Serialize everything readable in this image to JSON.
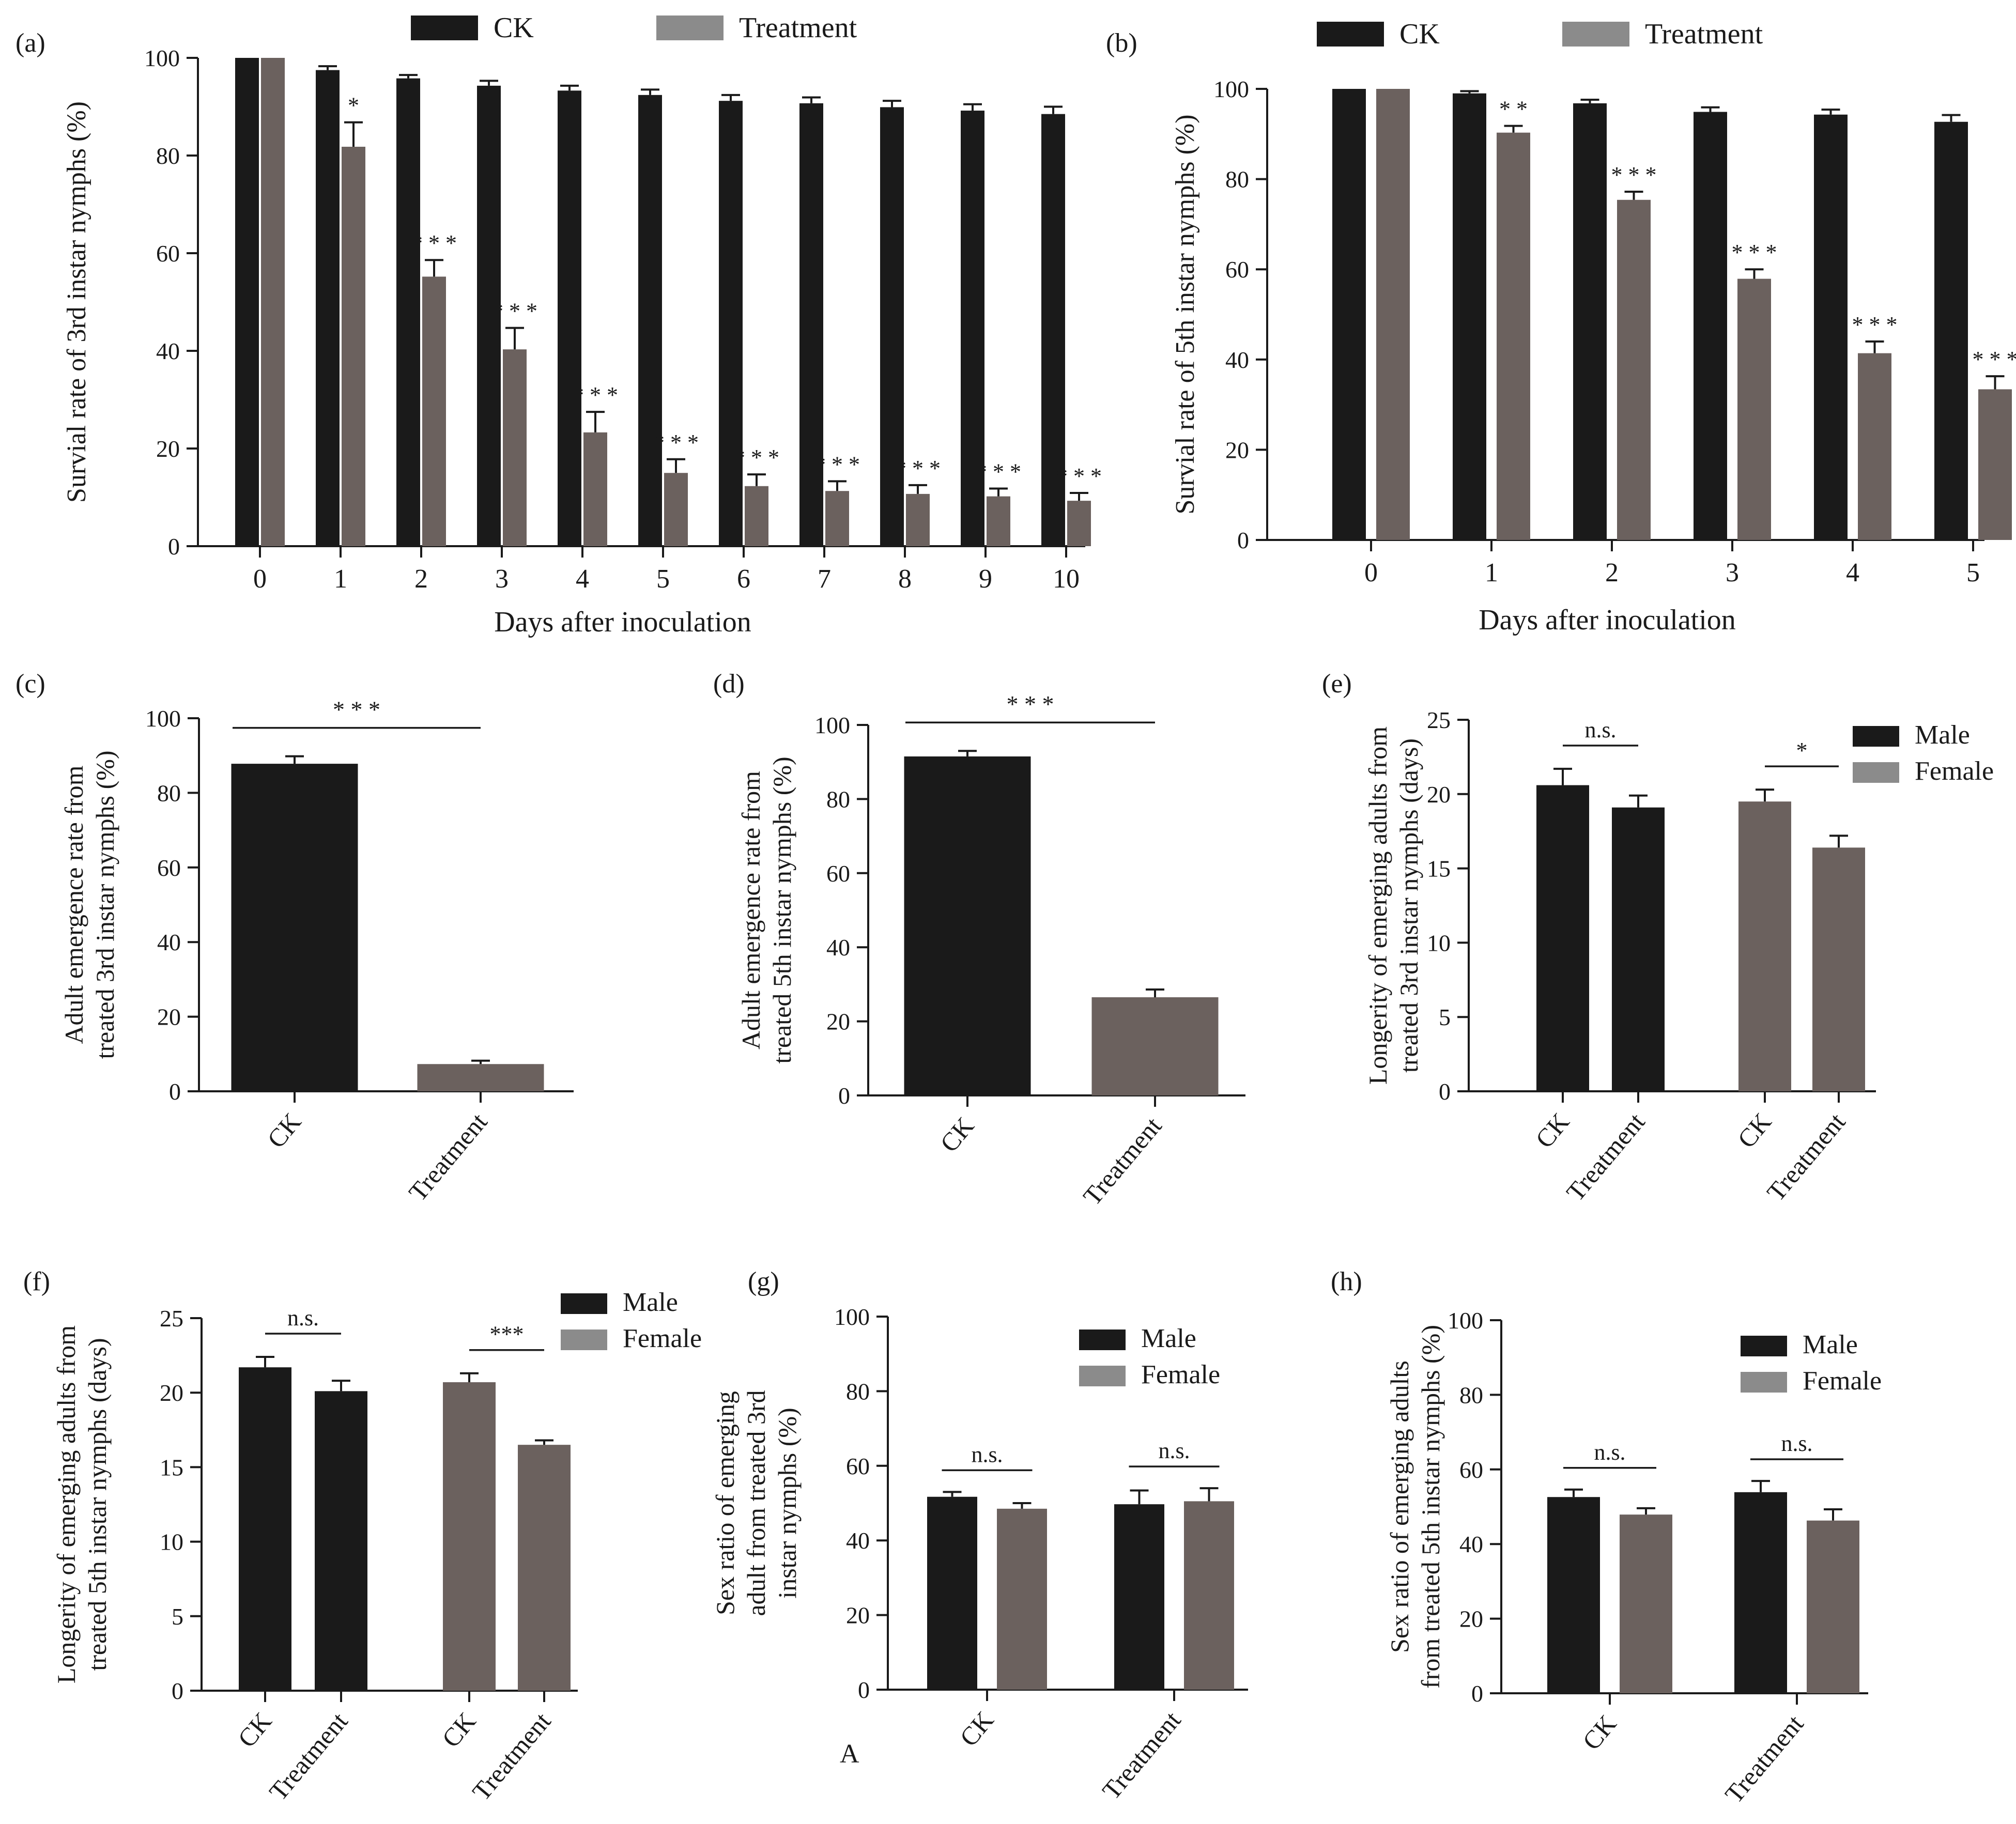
{
  "colors": {
    "dark": "#1a1a1a",
    "gray": "#6b615e",
    "legend_gray": "#8b8b8b"
  },
  "chart_data": [
    {
      "id": "a",
      "panel_label": "(a)",
      "type": "bar",
      "ylabel": "Survial rate of 3rd instar nymphs  (%)",
      "xlabel": "Days after inoculation",
      "ylim": [
        0,
        100
      ],
      "yticks": [
        "0",
        "20",
        "40",
        "60",
        "80",
        "100"
      ],
      "categories": [
        "0",
        "1",
        "2",
        "3",
        "4",
        "5",
        "6",
        "7",
        "8",
        "9",
        "10"
      ],
      "series": [
        {
          "name": "CK",
          "values": [
            100,
            97.5,
            95.8,
            94.3,
            93.3,
            92.4,
            91.2,
            90.7,
            89.9,
            89.2,
            88.5
          ],
          "errors": [
            0,
            0.8,
            0.7,
            1.0,
            1.0,
            1.1,
            1.2,
            1.2,
            1.3,
            1.3,
            1.5
          ]
        },
        {
          "name": "Treatment",
          "values": [
            100,
            81.8,
            55.2,
            40.3,
            23.3,
            15.0,
            12.3,
            11.3,
            10.7,
            10.2,
            9.3
          ],
          "errors": [
            0,
            5.0,
            3.4,
            4.4,
            4.2,
            2.8,
            2.4,
            2.0,
            1.8,
            1.6,
            1.6
          ]
        }
      ],
      "significance": [
        "",
        "*",
        "* * *",
        "* * *",
        "* * *",
        "* * *",
        "* * *",
        "* * *",
        "* * *",
        "* * *",
        "* * *"
      ],
      "legend": [
        "CK",
        "Treatment"
      ]
    },
    {
      "id": "b",
      "panel_label": "(b)",
      "type": "bar",
      "ylabel": "Survial rate of 5th instar nymphs  (%)",
      "xlabel": "Days after inoculation",
      "ylim": [
        0,
        100
      ],
      "yticks": [
        "0",
        "20",
        "40",
        "60",
        "80",
        "100"
      ],
      "categories": [
        "0",
        "1",
        "2",
        "3",
        "4",
        "5"
      ],
      "series": [
        {
          "name": "CK",
          "values": [
            100,
            99.0,
            96.8,
            94.9,
            94.3,
            92.7
          ],
          "errors": [
            0,
            0.5,
            0.8,
            1.0,
            1.1,
            1.5
          ]
        },
        {
          "name": "Treatment",
          "values": [
            100,
            90.3,
            75.4,
            57.9,
            41.4,
            33.4
          ],
          "errors": [
            0,
            1.5,
            1.8,
            2.1,
            2.6,
            2.9
          ]
        }
      ],
      "significance": [
        "",
        "* *",
        "* * *",
        "* * *",
        "* * *",
        "* * *"
      ],
      "legend": [
        "CK",
        "Treatment"
      ]
    },
    {
      "id": "c",
      "panel_label": "(c)",
      "type": "bar",
      "ylabel": [
        "Adult emergence rate from",
        "treated 3rd instar nymphs (%)"
      ],
      "ylim": [
        0,
        100
      ],
      "yticks": [
        "0",
        "20",
        "40",
        "60",
        "80",
        "100"
      ],
      "categories": [
        "CK",
        "Treatment"
      ],
      "values": [
        87.8,
        7.3
      ],
      "errors": [
        2.0,
        0.9
      ],
      "bracket": {
        "label": "* * *",
        "from": 0,
        "to": 1
      }
    },
    {
      "id": "d",
      "panel_label": "(d)",
      "type": "bar",
      "ylabel": [
        "Adult emergence rate from",
        "treated 5th instar nymphs (%)"
      ],
      "ylim": [
        0,
        100
      ],
      "yticks": [
        "0",
        "20",
        "40",
        "60",
        "80",
        "100"
      ],
      "categories": [
        "CK",
        "Treatment"
      ],
      "values": [
        91.5,
        26.5
      ],
      "errors": [
        1.5,
        2.1
      ],
      "bracket": {
        "label": "* * *",
        "from": 0,
        "to": 1
      }
    },
    {
      "id": "e",
      "panel_label": "(e)",
      "type": "bar",
      "ylabel": [
        "Longerity of emerging adults from",
        "treated 3rd instar nymphs (days)"
      ],
      "ylim": [
        0,
        25
      ],
      "yticks": [
        "0",
        "5",
        "10",
        "15",
        "20",
        "25"
      ],
      "categories": [
        "CK",
        "Treatment",
        "CK",
        "Treatment"
      ],
      "values": [
        20.6,
        19.1,
        19.5,
        16.4
      ],
      "errors": [
        1.1,
        0.8,
        0.8,
        0.8
      ],
      "bar_colors": [
        "dark",
        "dark",
        "gray",
        "gray"
      ],
      "groups": [
        {
          "label": "n.s.",
          "from": 0,
          "to": 1
        },
        {
          "label": "*",
          "from": 2,
          "to": 3
        }
      ],
      "legend": [
        "Male",
        "Female"
      ]
    },
    {
      "id": "f",
      "panel_label": "(f)",
      "type": "bar",
      "ylabel": [
        "Longerity of emerging adults from",
        "treated 5th instar nymphs (days)"
      ],
      "ylim": [
        0,
        25
      ],
      "yticks": [
        "0",
        "5",
        "10",
        "15",
        "20",
        "25"
      ],
      "categories": [
        "CK",
        "Treatment",
        "CK",
        "Treatment"
      ],
      "values": [
        21.7,
        20.1,
        20.7,
        16.5
      ],
      "errors": [
        0.7,
        0.7,
        0.6,
        0.3
      ],
      "bar_colors": [
        "dark",
        "dark",
        "gray",
        "gray"
      ],
      "groups": [
        {
          "label": "n.s.",
          "from": 0,
          "to": 1
        },
        {
          "label": "***",
          "from": 2,
          "to": 3
        }
      ],
      "legend": [
        "Male",
        "Female"
      ]
    },
    {
      "id": "g",
      "panel_label": "(g)",
      "type": "bar",
      "ylabel": [
        "Sex ratio of emerging",
        "adult from treated 3rd",
        "instar nymphs (%)"
      ],
      "ylim": [
        0,
        100
      ],
      "yticks": [
        "0",
        "20",
        "40",
        "60",
        "80",
        "100"
      ],
      "categories": [
        "CK",
        "Treatment"
      ],
      "series": [
        {
          "name": "Male",
          "values": [
            51.7,
            49.7
          ],
          "errors": [
            1.3,
            3.7
          ]
        },
        {
          "name": "Female",
          "values": [
            48.5,
            50.5
          ],
          "errors": [
            1.5,
            3.5
          ]
        }
      ],
      "groups": [
        {
          "label": "n.s.",
          "category": 0
        },
        {
          "label": "n.s.",
          "category": 1
        }
      ],
      "legend": [
        "Male",
        "Female"
      ],
      "extra_label": "A"
    },
    {
      "id": "h",
      "panel_label": "(h)",
      "type": "bar",
      "ylabel": [
        "Sex ratio of emerging adults",
        "from treated 5th instar nymphs (%)"
      ],
      "ylim": [
        0,
        100
      ],
      "yticks": [
        "0",
        "20",
        "40",
        "60",
        "80",
        "100"
      ],
      "categories": [
        "CK",
        "Treatment"
      ],
      "series": [
        {
          "name": "Male",
          "values": [
            52.6,
            53.9
          ],
          "errors": [
            2.0,
            3.0
          ]
        },
        {
          "name": "Female",
          "values": [
            47.9,
            46.3
          ],
          "errors": [
            1.7,
            3.0
          ]
        }
      ],
      "groups": [
        {
          "label": "n.s.",
          "category": 0
        },
        {
          "label": "n.s.",
          "category": 1
        }
      ],
      "legend": [
        "Male",
        "Female"
      ]
    }
  ]
}
